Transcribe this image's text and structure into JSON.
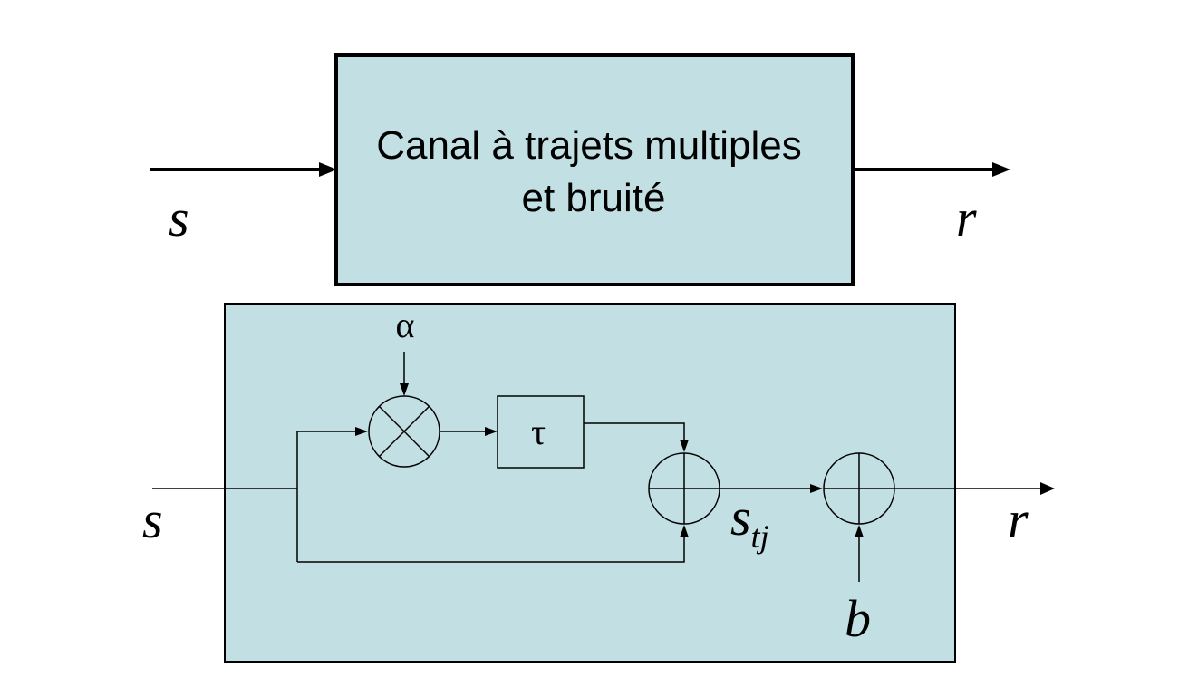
{
  "top_block": {
    "line1": "Canal à trajets multiples",
    "line2": "et bruité",
    "fill": "#c2e0e3",
    "input_label": "s",
    "output_label": "r"
  },
  "detail_block": {
    "fill": "#c2e0e3",
    "input_label": "s",
    "output_label": "r",
    "gain_label": "α",
    "delay_label": "τ",
    "intermediate_label": "s",
    "intermediate_sub": "tj",
    "noise_label": "b"
  }
}
